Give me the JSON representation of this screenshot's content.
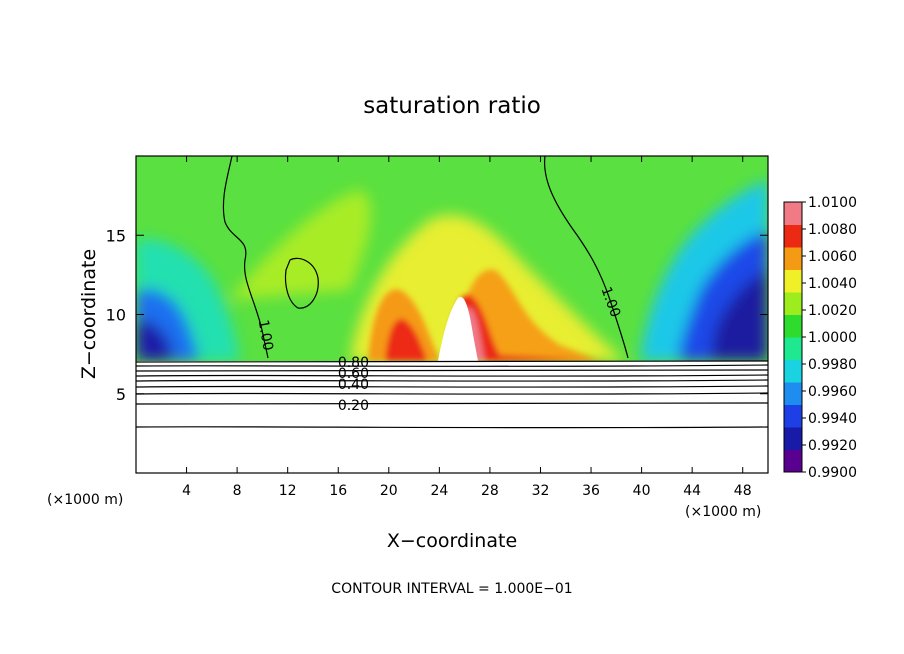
{
  "chart_data": {
    "type": "heatmap",
    "title": "saturation ratio",
    "xlabel": "X−coordinate",
    "ylabel": "Z−coordinate",
    "x_unit_left": "(×1000 m)",
    "x_unit_right": "(×1000 m)",
    "xlim": [
      0,
      50
    ],
    "ylim": [
      0,
      20
    ],
    "xticks": [
      4,
      8,
      12,
      16,
      20,
      24,
      28,
      32,
      36,
      40,
      44,
      48
    ],
    "yticks": [
      5,
      10,
      15
    ],
    "colorbar": {
      "min": 0.99,
      "max": 1.01,
      "labels": [
        "1.0100",
        "1.0080",
        "1.0060",
        "1.0040",
        "1.0020",
        "1.0000",
        "0.9980",
        "0.9960",
        "0.9940",
        "0.9920",
        "0.9900"
      ],
      "colors": [
        "#5a0090",
        "#1a1aa8",
        "#1f3fe6",
        "#1f8cf0",
        "#19d4e0",
        "#1ee890",
        "#2ddc2d",
        "#9cec1e",
        "#f0f028",
        "#f59a14",
        "#ec2a14",
        "#f07a86"
      ]
    },
    "contour_labels": [
      {
        "text": "1.00",
        "x": 10.3,
        "z": 8.7
      },
      {
        "text": "1.00",
        "x": 37.6,
        "z": 10.8
      },
      {
        "text": "0.80",
        "x": 17.2,
        "z": 7.0
      },
      {
        "text": "0.60",
        "x": 17.2,
        "z": 6.3
      },
      {
        "text": "0.40",
        "x": 17.2,
        "z": 5.6
      },
      {
        "text": "0.20",
        "x": 17.2,
        "z": 4.3
      }
    ],
    "footer": "CONTOUR INTERVAL = 1.000E−01"
  }
}
